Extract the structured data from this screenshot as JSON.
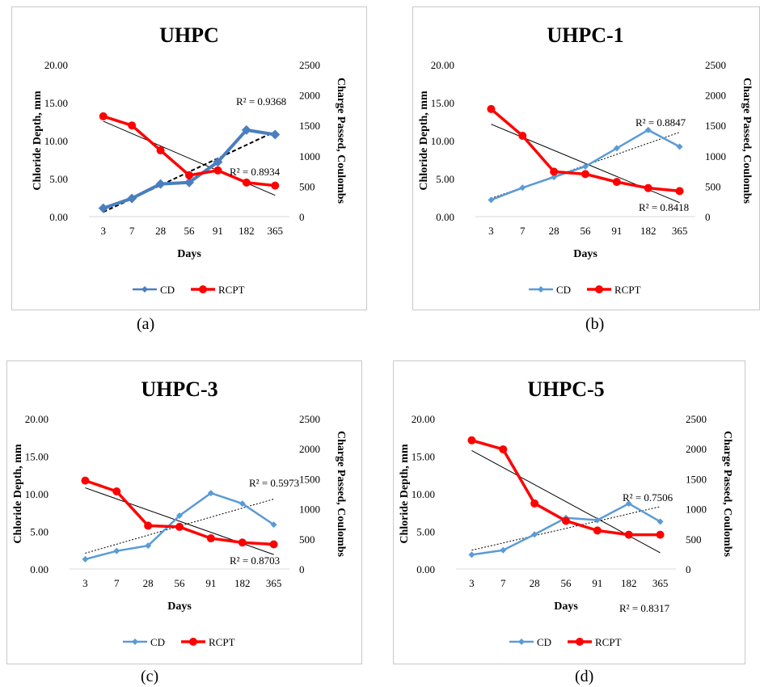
{
  "captions": [
    "(a)",
    "(b)",
    "(c)",
    "(d)"
  ],
  "colors": {
    "cd": "#5b9bd5",
    "cd_dark": "#4a7ec0",
    "rcpt": "#ff0000",
    "frame": "#c8c8c8",
    "trend": "#000000"
  },
  "chart_data": [
    {
      "type": "line",
      "title": "UHPC",
      "xlabel": "Days",
      "ylabel": "Chloride Depth, mm",
      "y2label": "Charge Passed, Coulombs",
      "categories": [
        "3",
        "7",
        "28",
        "56",
        "91",
        "182",
        "365"
      ],
      "ylim": [
        0,
        20
      ],
      "yticks": [
        "0.00",
        "5.00",
        "10.00",
        "15.00",
        "20.00"
      ],
      "y2lim": [
        0,
        2500
      ],
      "y2ticks": [
        "0",
        "500",
        "1000",
        "1500",
        "2000",
        "2500"
      ],
      "legend": "bottom",
      "series": [
        {
          "name": "CD",
          "axis": "left",
          "marker": "diamond",
          "values": [
            1.1,
            2.4,
            4.3,
            4.5,
            7.2,
            11.4,
            10.8
          ]
        },
        {
          "name": "RCPT",
          "axis": "right",
          "marker": "circle",
          "values": [
            1650,
            1500,
            1090,
            680,
            760,
            560,
            510
          ]
        }
      ],
      "trendlines": [
        {
          "series": "CD",
          "r2": "R² = 0.9368",
          "style": "dashed",
          "start": 0.6,
          "end": 11.2
        },
        {
          "series": "RCPT",
          "r2": "R² = 0.8934",
          "style": "solid",
          "start": 1570,
          "end": 350
        }
      ]
    },
    {
      "type": "line",
      "title": "UHPC-1",
      "xlabel": "Days",
      "ylabel": "Chloride Depth, mm",
      "y2label": "Charge Passed, Coulombs",
      "categories": [
        "3",
        "7",
        "28",
        "56",
        "91",
        "182",
        "365"
      ],
      "ylim": [
        0,
        20
      ],
      "yticks": [
        "0.00",
        "5.00",
        "10.00",
        "15.00",
        "20.00"
      ],
      "y2lim": [
        0,
        2500
      ],
      "y2ticks": [
        "0",
        "500",
        "1000",
        "1500",
        "2000",
        "2500"
      ],
      "legend": "bottom",
      "series": [
        {
          "name": "CD",
          "axis": "left",
          "marker": "diamond",
          "values": [
            2.2,
            3.8,
            5.2,
            6.6,
            9.0,
            11.4,
            9.2
          ]
        },
        {
          "name": "RCPT",
          "axis": "right",
          "marker": "circle",
          "values": [
            1770,
            1330,
            740,
            700,
            570,
            470,
            420
          ]
        }
      ],
      "trendlines": [
        {
          "series": "CD",
          "r2": "R² = 0.8847",
          "style": "dotted",
          "start": 2.4,
          "end": 11.1
        },
        {
          "series": "RCPT",
          "r2": "R² = 0.8418",
          "style": "solid",
          "start": 1520,
          "end": 230
        }
      ]
    },
    {
      "type": "line",
      "title": "UHPC-3",
      "xlabel": "Days",
      "ylabel": "Chloride Depth, mm",
      "y2label": "Charge Passed, Coulombs",
      "categories": [
        "3",
        "7",
        "28",
        "56",
        "91",
        "182",
        "365"
      ],
      "ylim": [
        0,
        20
      ],
      "yticks": [
        "0.00",
        "5.00",
        "10.00",
        "15.00",
        "20.00"
      ],
      "y2lim": [
        0,
        2500
      ],
      "y2ticks": [
        "0",
        "500",
        "1000",
        "1500",
        "2000",
        "2500"
      ],
      "legend": "bottom",
      "series": [
        {
          "name": "CD",
          "axis": "left",
          "marker": "diamond",
          "values": [
            1.3,
            2.4,
            3.1,
            7.1,
            10.1,
            8.7,
            5.9
          ]
        },
        {
          "name": "RCPT",
          "axis": "right",
          "marker": "circle",
          "values": [
            1470,
            1290,
            720,
            700,
            510,
            440,
            410
          ]
        }
      ],
      "trendlines": [
        {
          "series": "CD",
          "r2": "R² = 0.5973",
          "style": "dotted",
          "start": 2.1,
          "end": 9.3
        },
        {
          "series": "RCPT",
          "r2": "R² = 0.8703",
          "style": "solid",
          "start": 1350,
          "end": 240
        }
      ]
    },
    {
      "type": "line",
      "title": "UHPC-5",
      "xlabel": "Days",
      "ylabel": "Chloride Depth, mm",
      "y2label": "Charge Passed, Coulombs",
      "categories": [
        "3",
        "7",
        "28",
        "56",
        "91",
        "182",
        "365"
      ],
      "ylim": [
        0,
        20
      ],
      "yticks": [
        "0.00",
        "5.00",
        "10.00",
        "15.00",
        "20.00"
      ],
      "y2lim": [
        0,
        2500
      ],
      "y2ticks": [
        "0",
        "500",
        "1000",
        "1500",
        "2000",
        "2500"
      ],
      "legend": "bottom",
      "series": [
        {
          "name": "CD",
          "axis": "left",
          "marker": "diamond",
          "values": [
            1.9,
            2.5,
            4.6,
            6.8,
            6.5,
            8.7,
            6.3
          ]
        },
        {
          "name": "RCPT",
          "axis": "right",
          "marker": "circle",
          "values": [
            2140,
            1990,
            1090,
            800,
            640,
            570,
            570
          ]
        }
      ],
      "trendlines": [
        {
          "series": "CD",
          "r2": "R² = 0.7506",
          "style": "dotted",
          "start": 2.5,
          "end": 8.3
        },
        {
          "series": "RCPT",
          "r2": "R² = 0.8317",
          "style": "solid",
          "start": 1970,
          "end": 270
        }
      ]
    }
  ]
}
